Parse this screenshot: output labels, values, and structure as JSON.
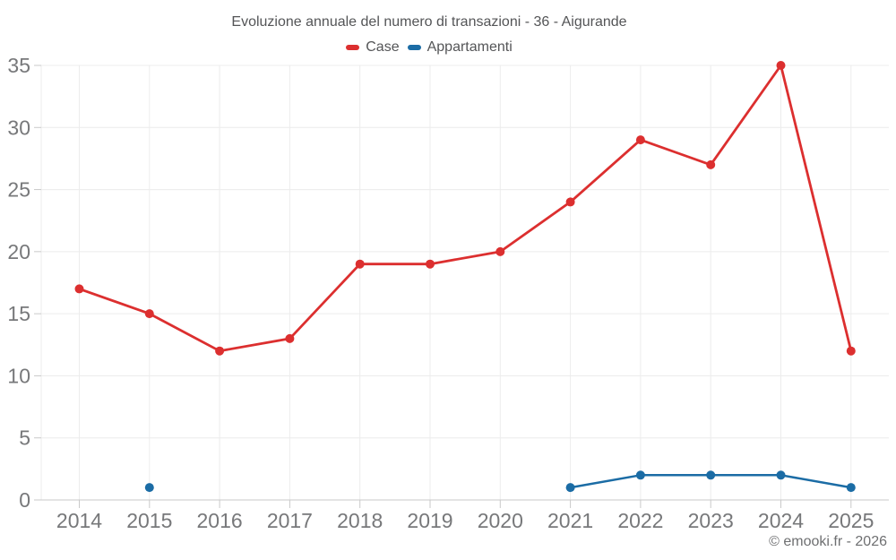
{
  "footer": {
    "credits": "© emooki.fr - 2026"
  },
  "colors": {
    "background": "#ffffff",
    "grid": "#ececec",
    "axis": "#c9c9c9",
    "tick_label": "#77787a",
    "title_text": "#545557",
    "legend_text": "#545557",
    "credits_text": "#6e6f71"
  },
  "chart_data": {
    "type": "line",
    "title": "Evoluzione annuale del numero di transazioni - 36 - Aigurande",
    "xlabel": "",
    "ylabel": "",
    "categories": [
      "2014",
      "2015",
      "2016",
      "2017",
      "2018",
      "2019",
      "2020",
      "2021",
      "2022",
      "2023",
      "2024",
      "2025"
    ],
    "series": [
      {
        "name": "Case",
        "color": "#dc2f2f",
        "values": [
          17,
          15,
          12,
          13,
          19,
          19,
          20,
          24,
          29,
          27,
          35,
          12
        ]
      },
      {
        "name": "Appartamenti",
        "color": "#1b6ca5",
        "values": [
          null,
          1,
          null,
          null,
          null,
          null,
          null,
          1,
          2,
          2,
          2,
          1
        ]
      }
    ],
    "ylim": [
      0,
      35
    ],
    "yticks": [
      0,
      5,
      10,
      15,
      20,
      25,
      30,
      35
    ],
    "grid": true,
    "legend_position": "top"
  }
}
